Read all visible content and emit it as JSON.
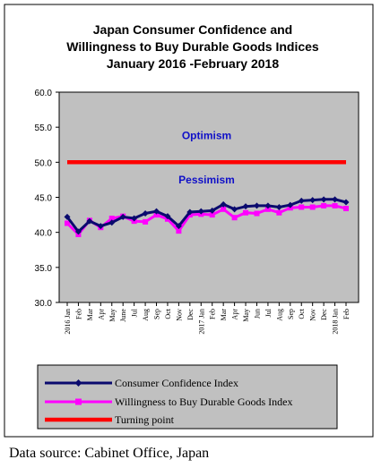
{
  "chart_data": {
    "type": "line",
    "title": [
      "Japan Consumer Confidence and",
      "Willingness to Buy Durable Goods Indices",
      "January 2016 -February 2018"
    ],
    "ylim": [
      30,
      60
    ],
    "y_ticks": [
      "60.0",
      "55.0",
      "50.0",
      "45.0",
      "40.0",
      "35.0",
      "30.0"
    ],
    "y_tick_values": [
      60,
      55,
      50,
      45,
      40,
      35,
      30
    ],
    "x_tick_labels": [
      "2016 Jan",
      "Feb",
      "Mar",
      "Apr",
      "May",
      "June",
      "Jul",
      "Aug",
      "Sep",
      "Oct",
      "Nov",
      "Dec",
      "2017 Jan",
      "Feb",
      "Mar",
      "Apr",
      "May",
      "Jun",
      "Jul",
      "Aug",
      "Sep",
      "Oct",
      "Nov",
      "Dec",
      "2018 Jan",
      "Feb"
    ],
    "grid": false,
    "plot_background": "#c0c0c0",
    "annotations": [
      {
        "text": "Optimism",
        "x_index": 12.5,
        "y": 53.3
      },
      {
        "text": "Pessimism",
        "x_index": 12.5,
        "y": 47.0
      }
    ],
    "legend_placement": "bottom",
    "series": [
      {
        "name": "Consumer Confidence Index",
        "color": "#0a0a6e",
        "marker": "diamond",
        "values": [
          42.2,
          40.1,
          41.6,
          40.9,
          41.4,
          42.2,
          42.0,
          42.7,
          43.0,
          42.3,
          40.9,
          42.9,
          43.0,
          43.1,
          44.0,
          43.3,
          43.7,
          43.8,
          43.8,
          43.6,
          43.9,
          44.5,
          44.6,
          44.7,
          44.7,
          44.3
        ]
      },
      {
        "name": "Willingness to Buy Durable Goods Index",
        "color": "#ff00ff",
        "marker": "square",
        "values": [
          41.3,
          39.7,
          41.7,
          40.7,
          42.0,
          42.3,
          41.6,
          41.5,
          42.5,
          41.9,
          40.2,
          42.5,
          42.6,
          42.5,
          43.3,
          42.1,
          42.8,
          42.7,
          43.3,
          42.8,
          43.5,
          43.6,
          43.6,
          43.8,
          43.8,
          43.4
        ]
      },
      {
        "name": "Turning point",
        "color": "#ff0000",
        "marker": "none",
        "values": [
          50,
          50,
          50,
          50,
          50,
          50,
          50,
          50,
          50,
          50,
          50,
          50,
          50,
          50,
          50,
          50,
          50,
          50,
          50,
          50,
          50,
          50,
          50,
          50,
          50,
          50
        ]
      }
    ]
  },
  "source_note": "Data source: Cabinet Office, Japan"
}
